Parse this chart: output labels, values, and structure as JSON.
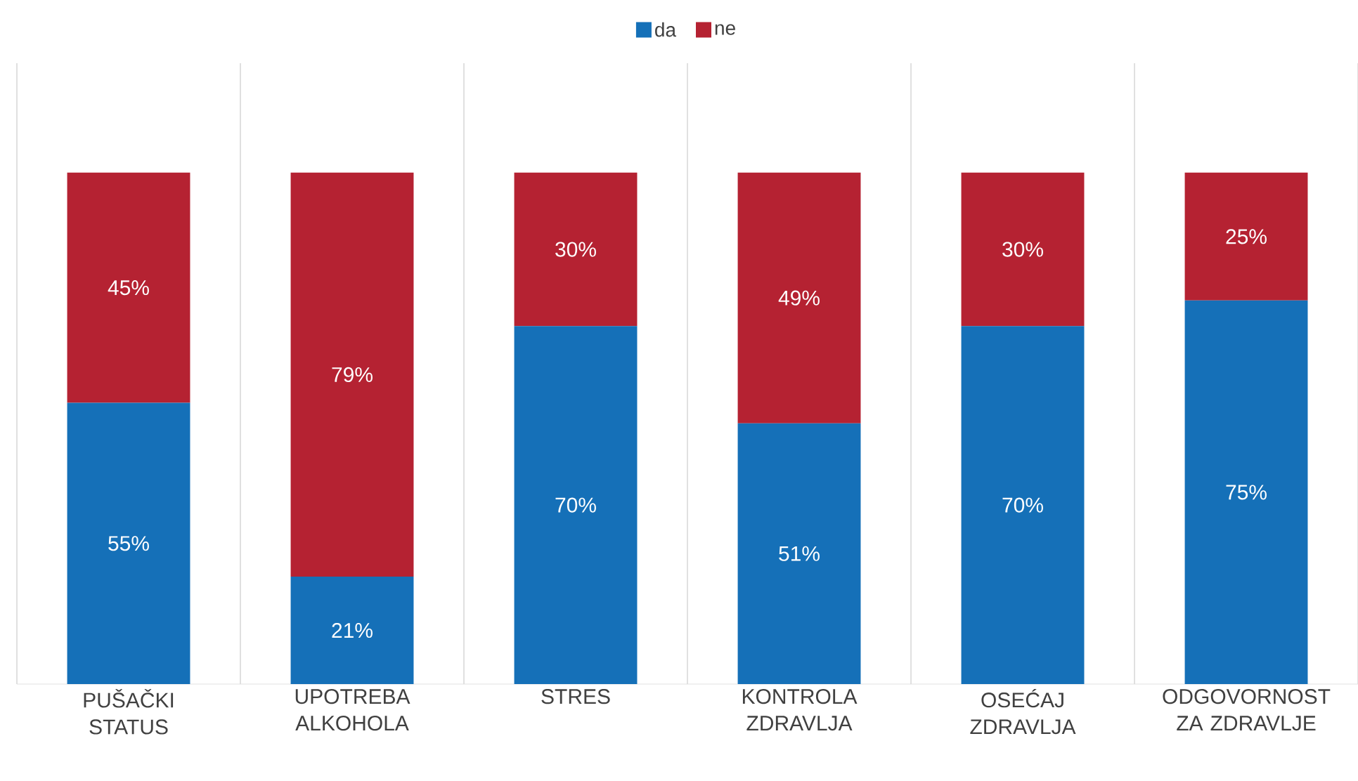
{
  "chart_data": {
    "type": "bar",
    "stacked": true,
    "legend": "top",
    "grid": "x",
    "categories": [
      "PUŠAČKI STATUS",
      "UPOTREBA ALKOHOLA",
      "STRES",
      "KONTROLA ZDRAVLJA",
      "OSEĆAJ ZDRAVLJA",
      "ODGOVORNOST ZA ZDRAVLJE"
    ],
    "series": [
      {
        "name": "da",
        "color": "#1570b8",
        "values": [
          55,
          21,
          70,
          51,
          70,
          75
        ],
        "value_labels": [
          "55%",
          "21%",
          "70%",
          "51%",
          "70%",
          "75%"
        ]
      },
      {
        "name": "ne",
        "color": "#b52232",
        "values": [
          45,
          79,
          30,
          49,
          30,
          25
        ],
        "value_labels": [
          "45%",
          "79%",
          "30%",
          "49%",
          "30%",
          "25%"
        ]
      }
    ]
  }
}
